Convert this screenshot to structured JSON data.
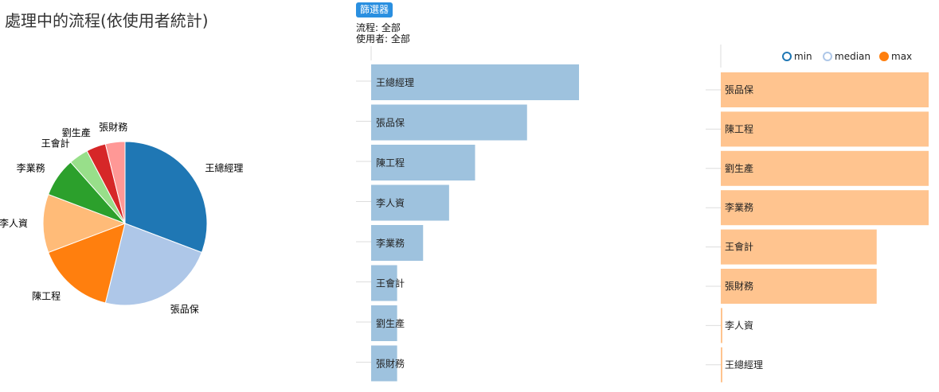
{
  "page_title": "處理中的流程(依使用者統計)",
  "filter": {
    "button_label": "篩選器",
    "process_label": "流程",
    "process_value": "全部",
    "user_label": "使用者",
    "user_value": "全部"
  },
  "legend": [
    {
      "label": "min",
      "color": "#1f77b4",
      "filled": false
    },
    {
      "label": "median",
      "color": "#aec7e8",
      "filled": false
    },
    {
      "label": "max",
      "color": "#ff7f0e",
      "filled": true
    }
  ],
  "chart_data": [
    {
      "type": "pie",
      "title": "處理中的流程(依使用者統計)",
      "slices": [
        {
          "label": "王總經理",
          "value": 8,
          "color": "#1f77b4"
        },
        {
          "label": "張品保",
          "value": 6,
          "color": "#aec7e8"
        },
        {
          "label": "陳工程",
          "value": 4,
          "color": "#ff7f0e"
        },
        {
          "label": "李人資",
          "value": 3,
          "color": "#ffbb78"
        },
        {
          "label": "李業務",
          "value": 2,
          "color": "#2ca02c"
        },
        {
          "label": "王會計",
          "value": 1,
          "color": "#98df8a"
        },
        {
          "label": "劉生產",
          "value": 1,
          "color": "#d62728"
        },
        {
          "label": "張財務",
          "value": 1,
          "color": "#ff9896"
        }
      ]
    },
    {
      "type": "bar",
      "orientation": "horizontal",
      "categories": [
        "王總經理",
        "張品保",
        "陳工程",
        "李人資",
        "李業務",
        "王會計",
        "劉生產",
        "張財務"
      ],
      "values": [
        8,
        6,
        4,
        3,
        2,
        1,
        1,
        1
      ],
      "xlim": [
        0,
        14
      ],
      "color": "#9ec2de"
    },
    {
      "type": "bar",
      "orientation": "horizontal",
      "series_name": "max",
      "categories": [
        "張品保",
        "陳工程",
        "劉生產",
        "李業務",
        "王會計",
        "張財務",
        "李人資",
        "王總經理"
      ],
      "values": [
        10,
        10,
        10,
        10,
        7.5,
        7.5,
        0,
        0
      ],
      "xlim": [
        0,
        10
      ],
      "color": "#ffc48f"
    }
  ]
}
